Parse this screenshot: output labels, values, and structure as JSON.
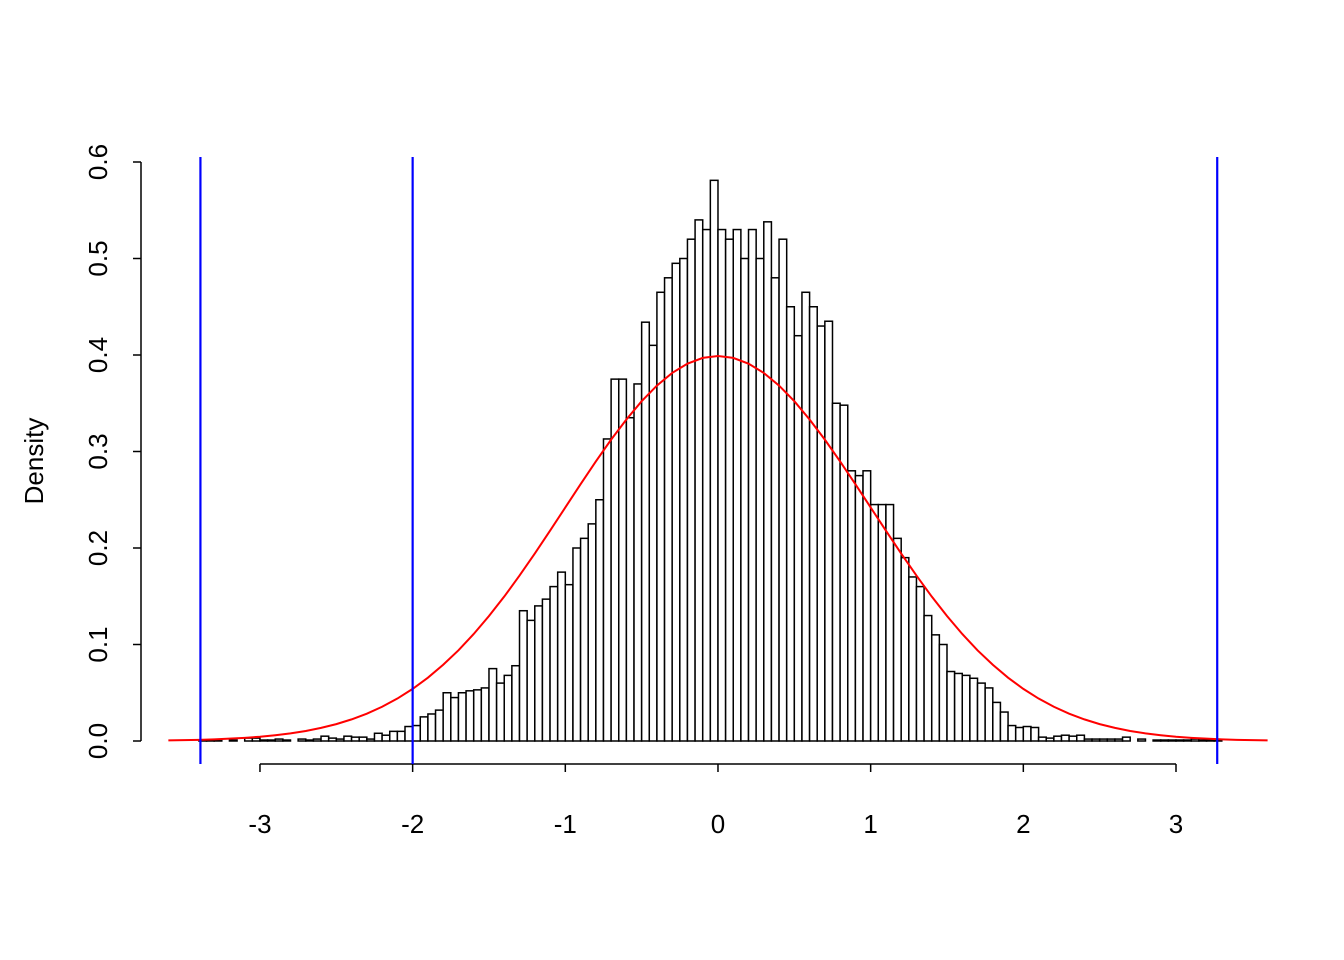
{
  "chart_data": {
    "type": "histogram",
    "ylabel": "Density",
    "bins": [
      -3.4,
      -3.35,
      -3.3,
      -3.25,
      -3.2,
      -3.15,
      -3.1,
      -3.05,
      -3,
      -2.95,
      -2.9,
      -2.85,
      -2.8,
      -2.75,
      -2.7,
      -2.65,
      -2.6,
      -2.55,
      -2.5,
      -2.45,
      -2.4,
      -2.35,
      -2.3,
      -2.25,
      -2.2,
      -2.15,
      -2.1,
      -2.05,
      -2,
      -1.95,
      -1.9,
      -1.85,
      -1.8,
      -1.75,
      -1.7,
      -1.65,
      -1.6,
      -1.55,
      -1.5,
      -1.45,
      -1.4,
      -1.35,
      -1.3,
      -1.25,
      -1.2,
      -1.15,
      -1.1,
      -1.05,
      -1,
      -0.95,
      -0.9,
      -0.85,
      -0.8,
      -0.75,
      -0.7,
      -0.65,
      -0.6,
      -0.55,
      -0.5,
      -0.45,
      -0.4,
      -0.35,
      -0.3,
      -0.25,
      -0.2,
      -0.15,
      -0.1,
      -0.05,
      0,
      0.05,
      0.1,
      0.15,
      0.2,
      0.25,
      0.3,
      0.35,
      0.4,
      0.45,
      0.5,
      0.55,
      0.6,
      0.65,
      0.7,
      0.75,
      0.8,
      0.85,
      0.9,
      0.95,
      1,
      1.05,
      1.1,
      1.15,
      1.2,
      1.25,
      1.3,
      1.35,
      1.4,
      1.45,
      1.5,
      1.55,
      1.6,
      1.65,
      1.7,
      1.75,
      1.8,
      1.85,
      1.9,
      1.95,
      2,
      2.05,
      2.1,
      2.15,
      2.2,
      2.25,
      2.3,
      2.35,
      2.4,
      2.45,
      2.5,
      2.55,
      2.6,
      2.65,
      2.7,
      2.75,
      2.8,
      2.85,
      2.9,
      2.95,
      3,
      3.05,
      3.1,
      3.15,
      3.2,
      3.25,
      3.3
    ],
    "values": [
      0.001,
      0.001,
      0.001,
      0,
      0.001,
      0,
      0.003,
      0.003,
      0.001,
      0.001,
      0.002,
      0.001,
      0,
      0.002,
      0.001,
      0.002,
      0.005,
      0.003,
      0.002,
      0.005,
      0.004,
      0.004,
      0.002,
      0.008,
      0.006,
      0.01,
      0.01,
      0.015,
      0.016,
      0.025,
      0.028,
      0.032,
      0.05,
      0.045,
      0.05,
      0.052,
      0.053,
      0.055,
      0.075,
      0.06,
      0.068,
      0.078,
      0.135,
      0.125,
      0.14,
      0.147,
      0.16,
      0.175,
      0.162,
      0.2,
      0.21,
      0.225,
      0.25,
      0.313,
      0.375,
      0.375,
      0.335,
      0.37,
      0.434,
      0.41,
      0.465,
      0.48,
      0.495,
      0.5,
      0.52,
      0.54,
      0.53,
      0.581,
      0.53,
      0.52,
      0.53,
      0.5,
      0.53,
      0.5,
      0.538,
      0.48,
      0.52,
      0.45,
      0.42,
      0.465,
      0.45,
      0.43,
      0.435,
      0.35,
      0.348,
      0.28,
      0.275,
      0.28,
      0.245,
      0.245,
      0.245,
      0.21,
      0.19,
      0.17,
      0.16,
      0.13,
      0.11,
      0.1,
      0.072,
      0.07,
      0.068,
      0.065,
      0.06,
      0.055,
      0.04,
      0.03,
      0.016,
      0.014,
      0.015,
      0.014,
      0.004,
      0.003,
      0.005,
      0.006,
      0.005,
      0.006,
      0.002,
      0.002,
      0.002,
      0.002,
      0.002,
      0.004,
      0,
      0.002,
      0,
      0.001,
      0.001,
      0.001,
      0.001,
      0.001,
      0.002,
      0.001,
      0.001,
      0.001
    ],
    "color": "#ffffff",
    "xlim": [
      -3.7,
      3.6
    ],
    "ylim": [
      0,
      0.6
    ],
    "xticks": [
      -3,
      -2,
      -1,
      0,
      1,
      2,
      3
    ],
    "yticks": [
      {
        "value": 0,
        "label": "0.0"
      },
      0.1,
      0.2,
      0.3,
      0.4,
      0.5,
      0.6
    ],
    "curve": {
      "color": "#ff0000",
      "x": [
        -3.6,
        -3.5,
        -3.4,
        -3.3,
        -3.2,
        -3.1,
        -3,
        -2.9,
        -2.8,
        -2.7,
        -2.6,
        -2.5,
        -2.4,
        -2.3,
        -2.2,
        -2.1,
        -2,
        -1.9,
        -1.8,
        -1.7,
        -1.6,
        -1.5,
        -1.4,
        -1.3,
        -1.2,
        -1.1,
        -1,
        -0.9,
        -0.8,
        -0.7,
        -0.6,
        -0.5,
        -0.4,
        -0.3,
        -0.2,
        -0.1,
        0,
        0.1,
        0.2,
        0.3,
        0.4,
        0.5,
        0.6,
        0.7,
        0.8,
        0.9,
        1,
        1.1,
        1.2,
        1.3,
        1.4,
        1.5,
        1.6,
        1.7,
        1.8,
        1.9,
        2,
        2.1,
        2.2,
        2.3,
        2.4,
        2.5,
        2.6,
        2.7,
        2.8,
        2.9,
        3,
        3.1,
        3.2,
        3.3,
        3.4,
        3.5,
        3.6
      ],
      "values": [
        0.0006,
        0.0009,
        0.0012,
        0.0017,
        0.0024,
        0.0033,
        0.0044,
        0.006,
        0.0079,
        0.0104,
        0.0136,
        0.0175,
        0.0224,
        0.0283,
        0.0355,
        0.044,
        0.054,
        0.0656,
        0.079,
        0.094,
        0.1109,
        0.1295,
        0.1497,
        0.1714,
        0.1942,
        0.2179,
        0.242,
        0.2661,
        0.2897,
        0.3123,
        0.3332,
        0.3521,
        0.3683,
        0.3814,
        0.391,
        0.397,
        0.3989,
        0.397,
        0.391,
        0.3814,
        0.3683,
        0.3521,
        0.3332,
        0.3123,
        0.2897,
        0.2661,
        0.242,
        0.2179,
        0.1942,
        0.1714,
        0.1497,
        0.1295,
        0.1109,
        0.094,
        0.079,
        0.0656,
        0.054,
        0.044,
        0.0355,
        0.0283,
        0.0224,
        0.0175,
        0.0136,
        0.0104,
        0.0079,
        0.006,
        0.0044,
        0.0033,
        0.0024,
        0.0017,
        0.0012,
        0.0009,
        0.0006
      ]
    },
    "vlines": {
      "color": "#0000ff",
      "values": [
        -3.39,
        -2,
        3.27
      ]
    }
  }
}
